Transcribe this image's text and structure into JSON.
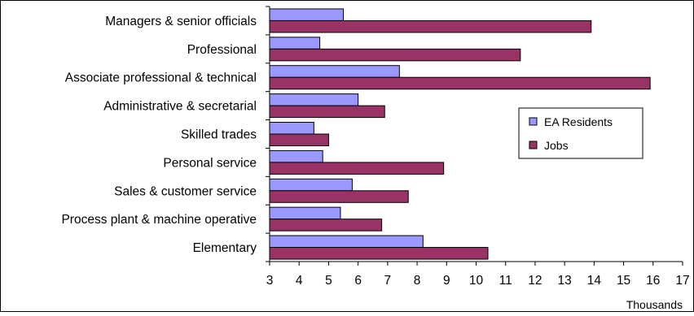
{
  "chart_data": {
    "type": "bar",
    "orientation": "horizontal",
    "categories": [
      "Managers & senior officials",
      "Professional",
      "Associate professional & technical",
      "Administrative & secretarial",
      "Skilled trades",
      "Personal service",
      "Sales & customer service",
      "Process plant & machine operative",
      "Elementary"
    ],
    "series": [
      {
        "name": "EA Residents",
        "color": "#9999ff",
        "values": [
          5.5,
          4.7,
          7.4,
          6.0,
          4.5,
          4.8,
          5.8,
          5.4,
          8.2
        ]
      },
      {
        "name": "Jobs",
        "color": "#993366",
        "values": [
          13.9,
          11.5,
          15.9,
          6.9,
          5.0,
          8.9,
          7.7,
          6.8,
          10.4
        ]
      }
    ],
    "xlabel": "Thousands",
    "xlim": [
      3,
      17
    ],
    "xticks": [
      "3",
      "4",
      "5",
      "6",
      "7",
      "8",
      "9",
      "10",
      "11",
      "12",
      "13",
      "14",
      "15",
      "16",
      "17"
    ],
    "grid": false,
    "legend_position": "right"
  }
}
